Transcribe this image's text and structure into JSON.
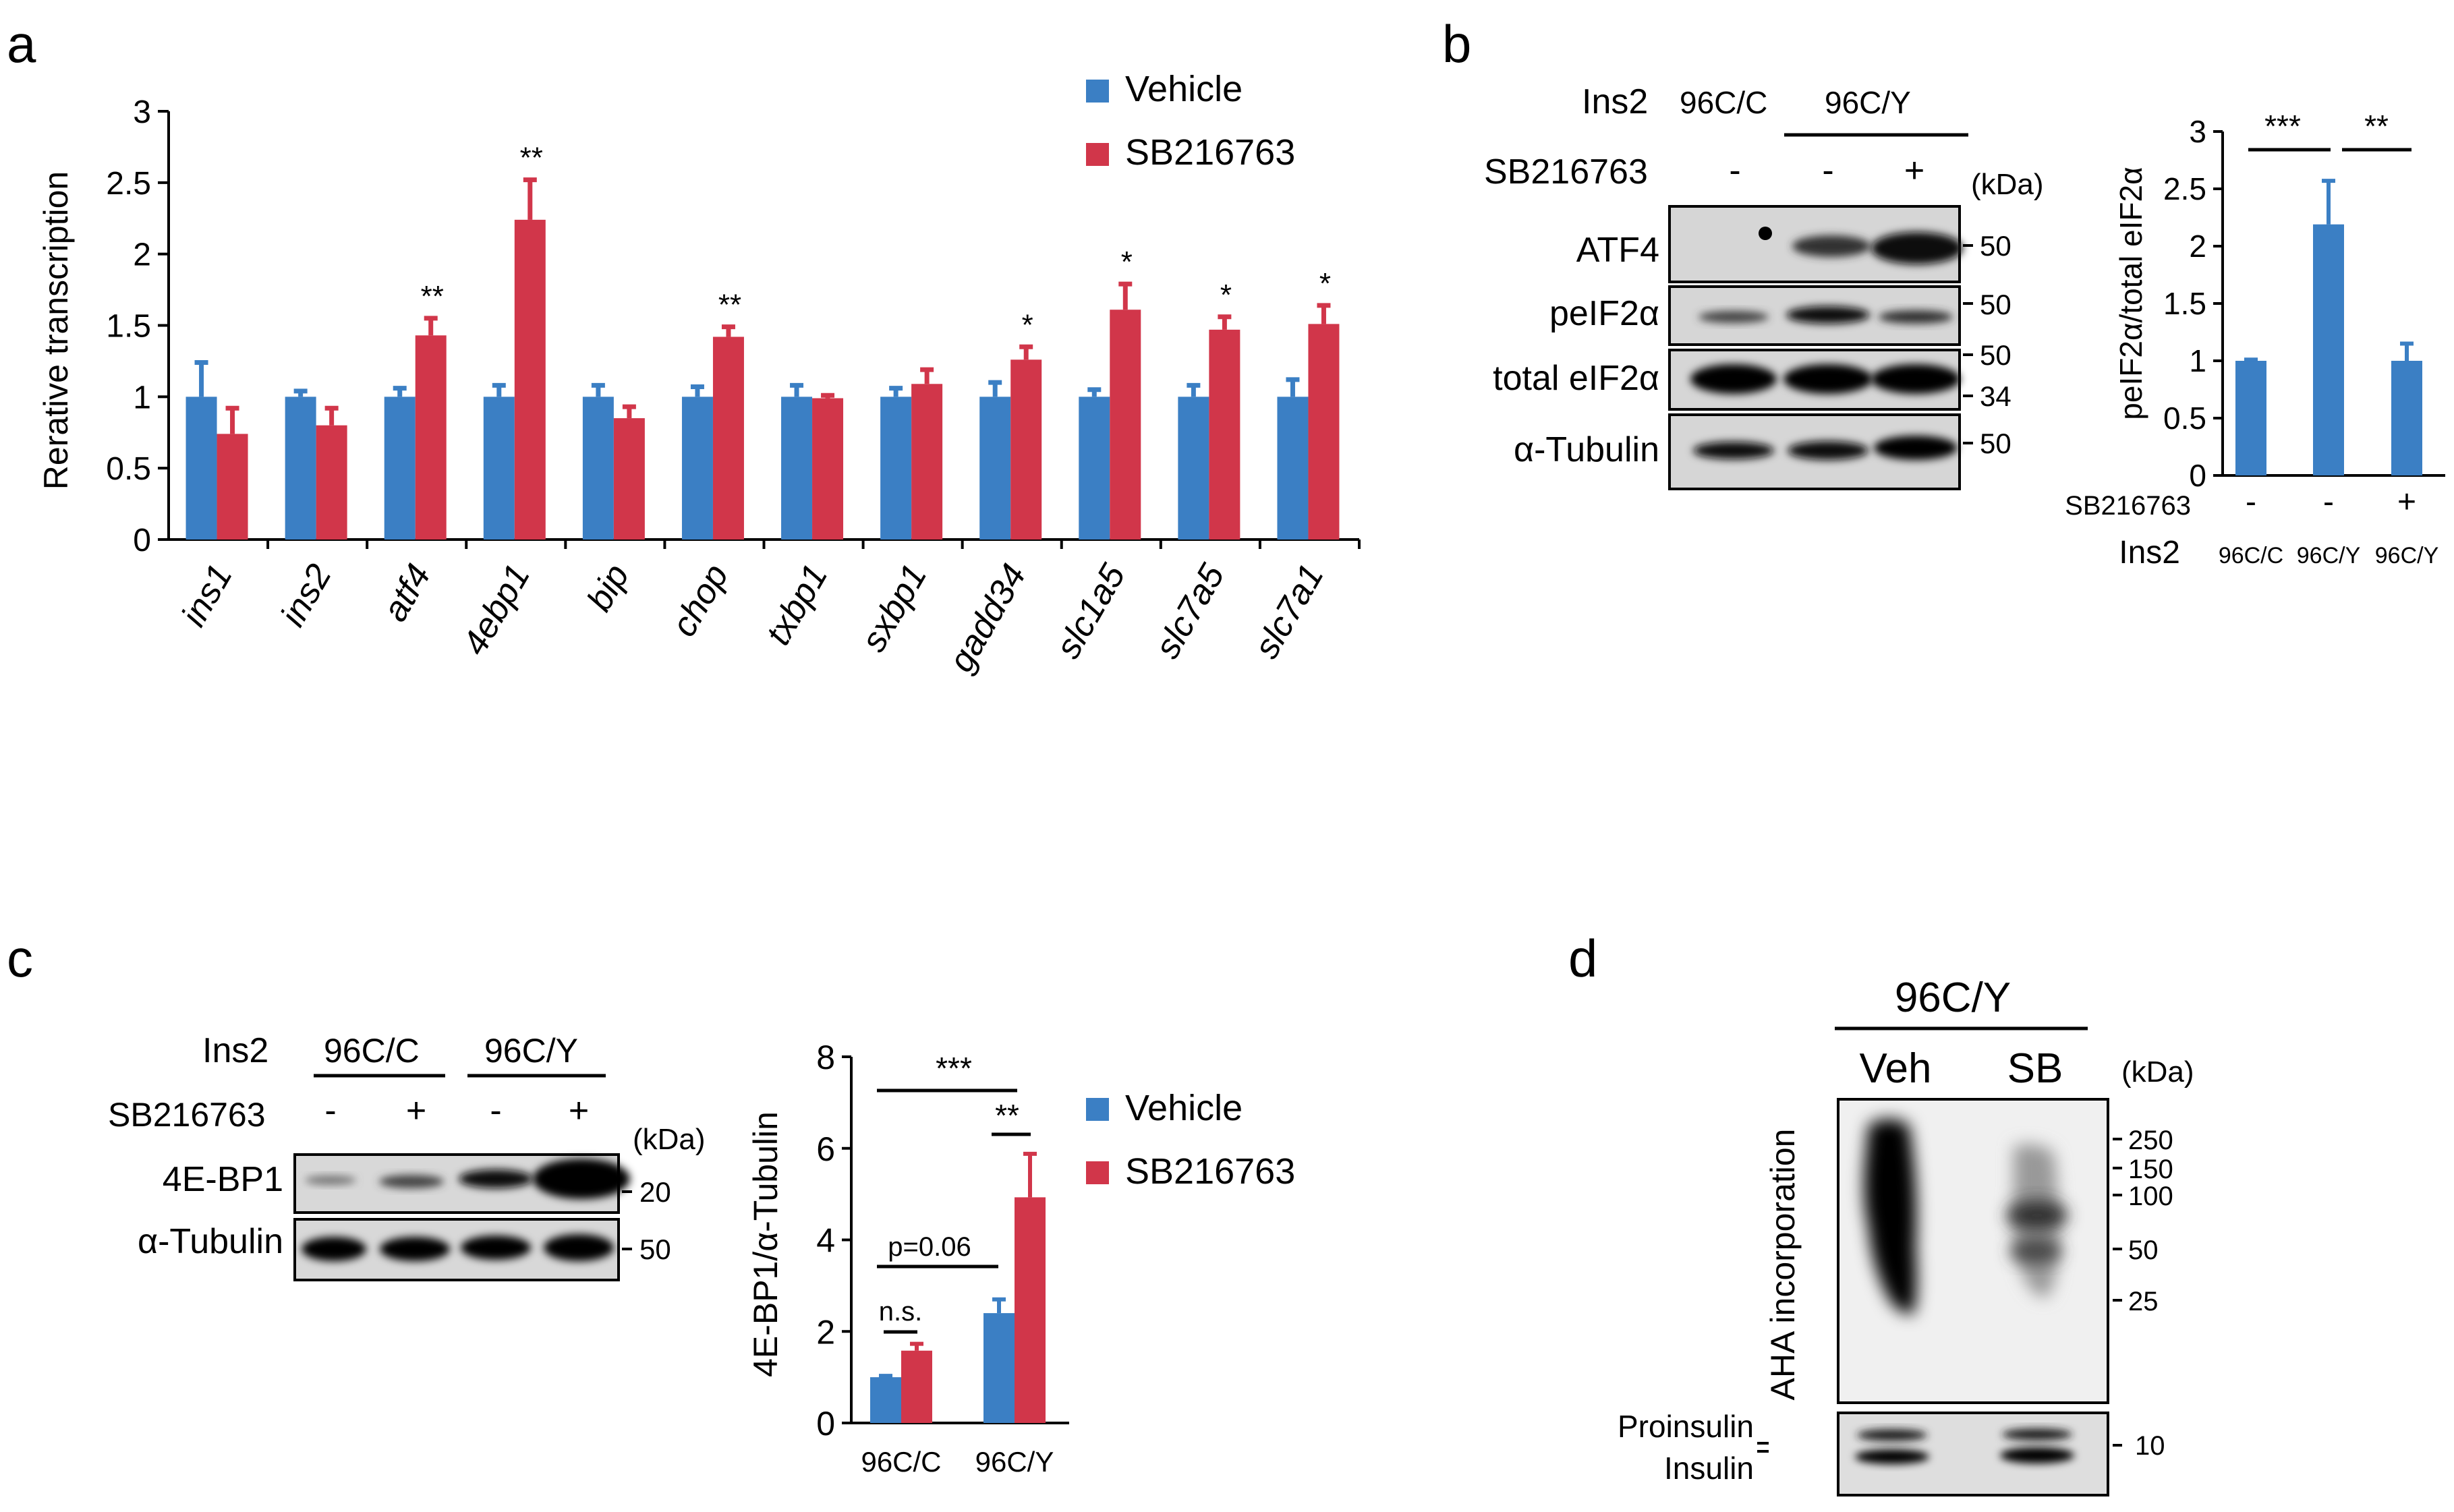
{
  "colors": {
    "vehicle": "#3b7fc4",
    "sb": "#d1364a",
    "blot_bg": "#d4d4d4",
    "band": "#111111"
  },
  "panel_a": {
    "letter": "a",
    "legend": [
      "Vehicle",
      "SB216763"
    ],
    "chart_data": {
      "type": "bar",
      "categories": [
        "ins1",
        "ins2",
        "atf4",
        "4ebp1",
        "bip",
        "chop",
        "txbp1",
        "sxbp1",
        "gadd34",
        "slc1a5",
        "slc7a5",
        "slc7a1"
      ],
      "series": [
        {
          "name": "Vehicle",
          "values": [
            1,
            1,
            1,
            1,
            1,
            1,
            1,
            1,
            1,
            1,
            1,
            1
          ],
          "errors": [
            0.24,
            0.04,
            0.06,
            0.08,
            0.08,
            0.07,
            0.08,
            0.06,
            0.1,
            0.05,
            0.08,
            0.12
          ]
        },
        {
          "name": "SB216763",
          "values": [
            0.74,
            0.8,
            1.43,
            2.24,
            0.85,
            1.42,
            0.99,
            1.09,
            1.26,
            1.61,
            1.47,
            1.51
          ],
          "errors": [
            0.18,
            0.12,
            0.12,
            0.28,
            0.08,
            0.07,
            0.02,
            0.1,
            0.09,
            0.18,
            0.09,
            0.13
          ]
        }
      ],
      "significance": [
        "",
        "",
        "**",
        "**",
        "",
        "**",
        "",
        "",
        "*",
        "*",
        "*",
        "*"
      ],
      "ylabel": "Rerative  transcription",
      "yticks": [
        "0",
        "0.5",
        "1",
        "1.5",
        "2",
        "2.5",
        "3"
      ],
      "ylim": [
        0,
        3
      ]
    }
  },
  "panel_b": {
    "letter": "b",
    "blot": {
      "ins2_label": "Ins2",
      "group_labels": [
        "96C/C",
        "96C/Y"
      ],
      "treatment_label": "SB216763",
      "treatment_signs": [
        "-",
        "-",
        "+"
      ],
      "kda_label": "(kDa)",
      "rows": [
        {
          "label": "ATF4",
          "markers": [
            "50"
          ]
        },
        {
          "label": "peIF2α",
          "markers": [
            "50"
          ]
        },
        {
          "label": "total eIF2α",
          "markers": [
            "50",
            "34"
          ]
        },
        {
          "label": "α-Tubulin",
          "markers": [
            "50"
          ]
        }
      ]
    },
    "chart_data": {
      "type": "bar",
      "categories": [
        "96C/C",
        "96C/Y",
        "96C/Y"
      ],
      "treatment": [
        "-",
        "-",
        "+"
      ],
      "values": [
        1.0,
        2.19,
        1.0
      ],
      "errors": [
        0.01,
        0.38,
        0.15
      ],
      "ylabel": "peIF2α/total eIF2α",
      "yticks": [
        "0",
        "0.5",
        "1",
        "1.5",
        "2",
        "2.5",
        "3"
      ],
      "ylim": [
        0,
        3
      ],
      "row_labels": [
        "SB216763",
        "Ins2"
      ],
      "significance": [
        "***",
        "**"
      ]
    }
  },
  "panel_c": {
    "letter": "c",
    "blot": {
      "ins2_label": "Ins2",
      "group_labels": [
        "96C/C",
        "96C/Y"
      ],
      "treatment_label": "SB216763",
      "treatment_signs": [
        "-",
        "+",
        "-",
        "+"
      ],
      "kda_label": "(kDa)",
      "rows": [
        {
          "label": "4E-BP1",
          "markers": [
            "20"
          ]
        },
        {
          "label": "α-Tubulin",
          "markers": [
            "50"
          ]
        }
      ]
    },
    "legend": [
      "Vehicle",
      "SB216763"
    ],
    "chart_data": {
      "type": "bar",
      "categories": [
        "96C/C",
        "96C/Y"
      ],
      "series": [
        {
          "name": "Vehicle",
          "values": [
            1.0,
            2.4
          ],
          "errors": [
            0.03,
            0.3
          ]
        },
        {
          "name": "SB216763",
          "values": [
            1.58,
            4.93
          ],
          "errors": [
            0.15,
            0.95
          ]
        }
      ],
      "ylabel": "4E-BP1/α-Tubulin",
      "yticks": [
        "0",
        "2",
        "4",
        "6",
        "8"
      ],
      "ylim": [
        0,
        8
      ],
      "annotations": [
        "***",
        "**",
        "p=0.06",
        "n.s."
      ]
    }
  },
  "panel_d": {
    "letter": "d",
    "group_label": "96C/Y",
    "lane_labels": [
      "Veh",
      "SB"
    ],
    "kda_label": "(kDa)",
    "markers": [
      "250",
      "150",
      "100",
      "50",
      "25"
    ],
    "bottom_marker": "10",
    "ylabel": "AHA  incorporation",
    "bottom_labels": [
      "Proinsulin",
      "Insulin"
    ]
  }
}
